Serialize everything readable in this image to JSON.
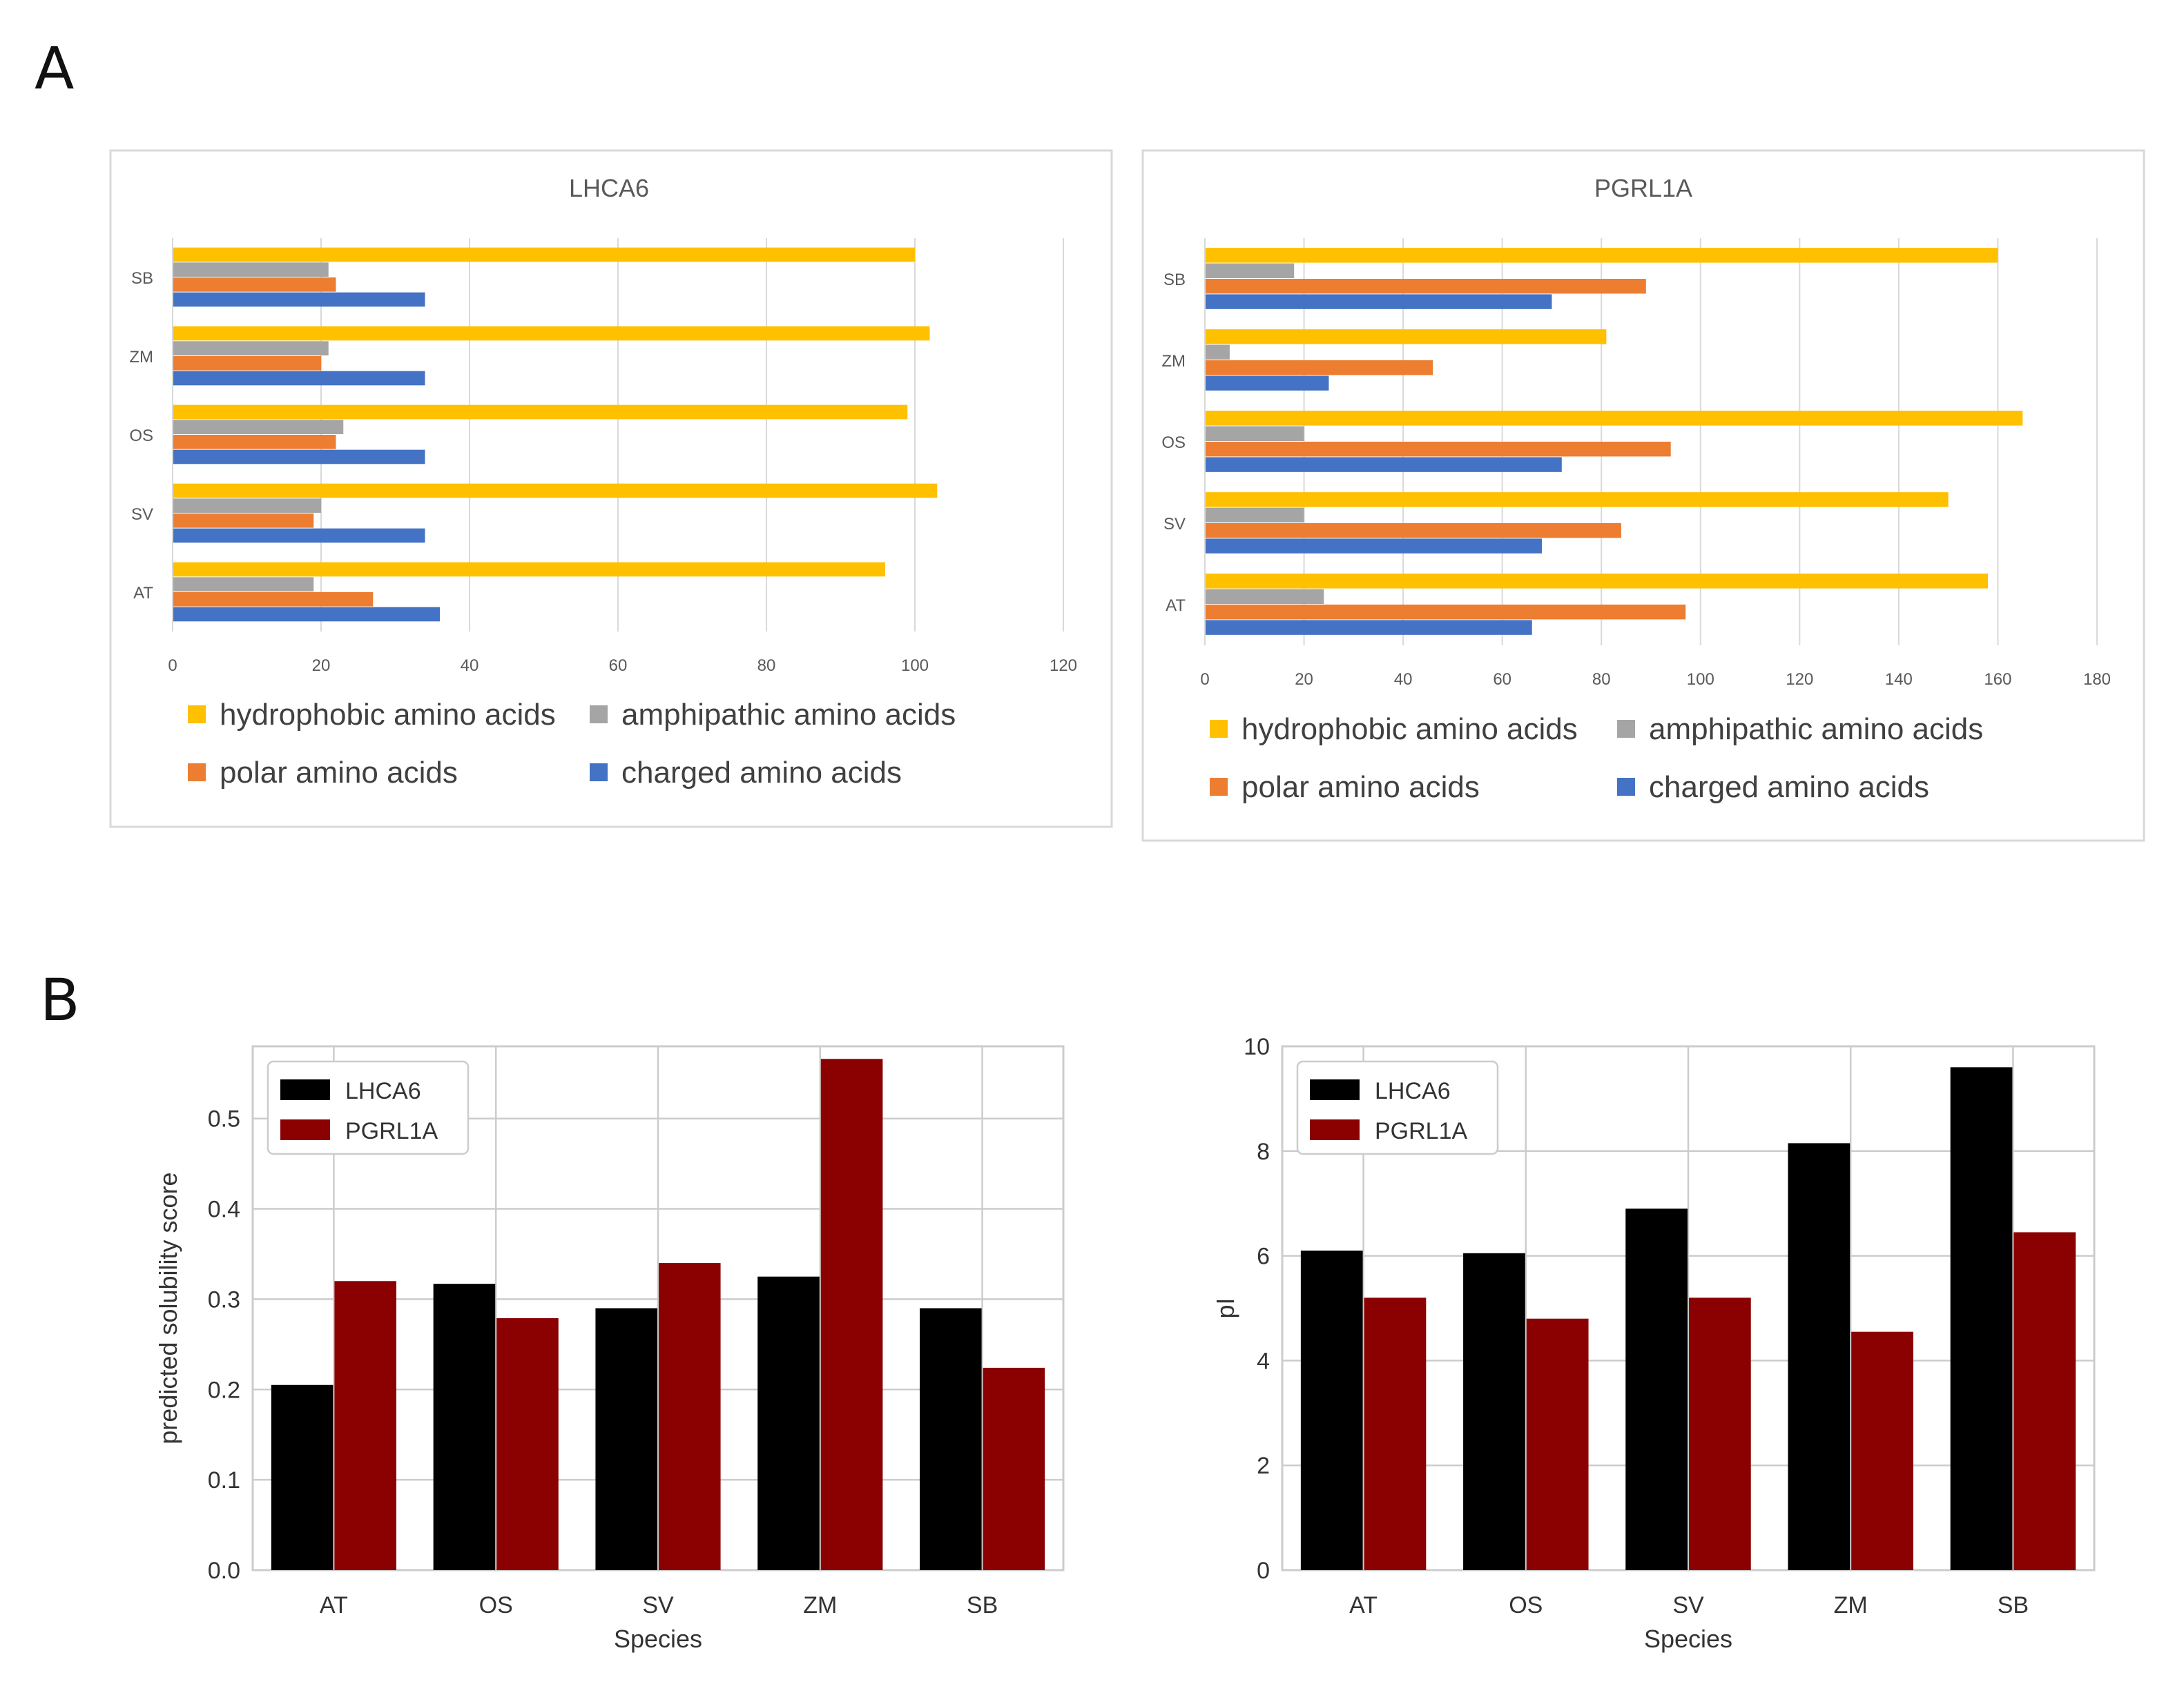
{
  "panels": {
    "A": {
      "label": "A"
    },
    "B": {
      "label": "B"
    }
  },
  "legend_colors": {
    "hydrophobic": "#FFC000",
    "amphipathic": "#A5A5A5",
    "polar": "#ED7D31",
    "charged": "#4472C4",
    "LHCA6": "#000000",
    "PGRL1A": "#8B0000"
  },
  "chart_data": [
    {
      "id": "lhca6_aa",
      "type": "bar",
      "orientation": "horizontal",
      "title": "LHCA6",
      "categories": [
        "AT",
        "SV",
        "OS",
        "ZM",
        "SB"
      ],
      "series": [
        {
          "name": "hydrophobic amino acids",
          "key": "hydrophobic",
          "values": [
            96,
            103,
            99,
            102,
            100
          ]
        },
        {
          "name": "amphipathic amino acids",
          "key": "amphipathic",
          "values": [
            19,
            20,
            23,
            21,
            21
          ]
        },
        {
          "name": "polar amino acids",
          "key": "polar",
          "values": [
            27,
            19,
            22,
            20,
            22
          ]
        },
        {
          "name": "charged amino acids",
          "key": "charged",
          "values": [
            36,
            34,
            34,
            34,
            34
          ]
        }
      ],
      "xlim": [
        0,
        120
      ],
      "xticks": [
        0,
        20,
        40,
        60,
        80,
        100,
        120
      ],
      "legend_position": "bottom"
    },
    {
      "id": "pgrl1a_aa",
      "type": "bar",
      "orientation": "horizontal",
      "title": "PGRL1A",
      "categories": [
        "AT",
        "SV",
        "OS",
        "ZM",
        "SB"
      ],
      "series": [
        {
          "name": "hydrophobic amino acids",
          "key": "hydrophobic",
          "values": [
            158,
            150,
            165,
            81,
            160
          ]
        },
        {
          "name": "amphipathic amino acids",
          "key": "amphipathic",
          "values": [
            24,
            20,
            20,
            5,
            18
          ]
        },
        {
          "name": "polar amino acids",
          "key": "polar",
          "values": [
            97,
            84,
            94,
            46,
            89
          ]
        },
        {
          "name": "charged amino acids",
          "key": "charged",
          "values": [
            66,
            68,
            72,
            25,
            70
          ]
        }
      ],
      "xlim": [
        0,
        180
      ],
      "xticks": [
        0,
        20,
        40,
        60,
        80,
        100,
        120,
        140,
        160,
        180
      ],
      "legend_position": "bottom"
    },
    {
      "id": "solubility",
      "type": "bar",
      "orientation": "vertical",
      "title": "",
      "xlabel": "Species",
      "ylabel": "predicted solubility score",
      "categories": [
        "AT",
        "OS",
        "SV",
        "ZM",
        "SB"
      ],
      "series": [
        {
          "name": "LHCA6",
          "key": "LHCA6",
          "values": [
            0.205,
            0.317,
            0.29,
            0.325,
            0.29
          ]
        },
        {
          "name": "PGRL1A",
          "key": "PGRL1A",
          "values": [
            0.32,
            0.279,
            0.34,
            0.566,
            0.224
          ]
        }
      ],
      "ylim": [
        0,
        0.58
      ],
      "yticks": [
        "0.0",
        "0.1",
        "0.2",
        "0.3",
        "0.4",
        "0.5"
      ],
      "legend_position": "top-left",
      "grid": true
    },
    {
      "id": "pi",
      "type": "bar",
      "orientation": "vertical",
      "title": "",
      "xlabel": "Species",
      "ylabel": "pI",
      "categories": [
        "AT",
        "OS",
        "SV",
        "ZM",
        "SB"
      ],
      "series": [
        {
          "name": "LHCA6",
          "key": "LHCA6",
          "values": [
            6.1,
            6.05,
            6.9,
            8.15,
            9.6
          ]
        },
        {
          "name": "PGRL1A",
          "key": "PGRL1A",
          "values": [
            5.2,
            4.8,
            5.2,
            4.55,
            6.45
          ]
        }
      ],
      "ylim": [
        0,
        10
      ],
      "yticks": [
        "0",
        "2",
        "4",
        "6",
        "8",
        "10"
      ],
      "legend_position": "top-left",
      "grid": true
    }
  ]
}
